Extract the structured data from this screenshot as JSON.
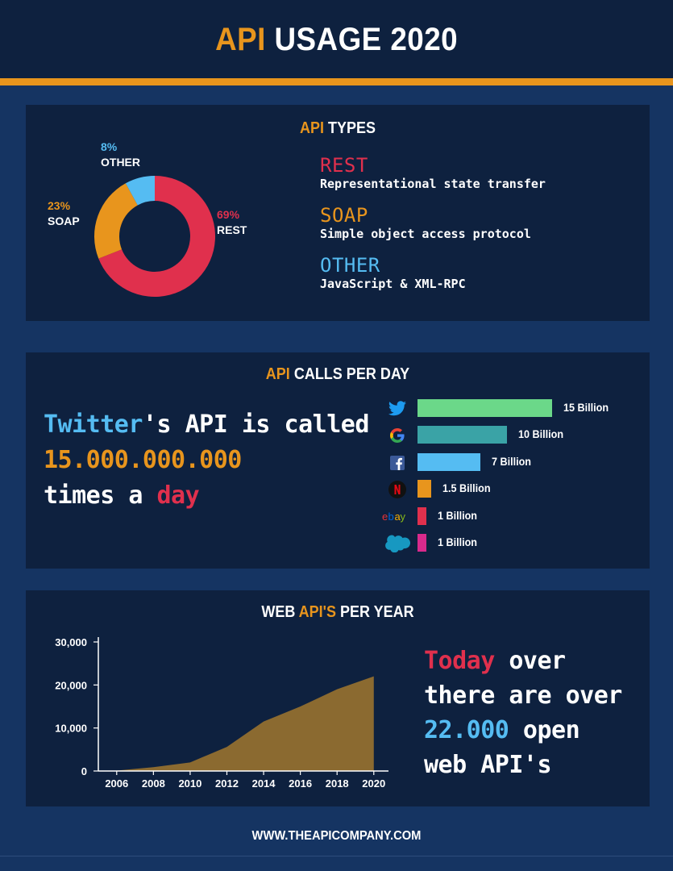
{
  "header": {
    "title_accent": "API",
    "title_rest": "USAGE 2020"
  },
  "colors": {
    "accent": "#e8951d",
    "rest": "#e0304d",
    "soap": "#e8951d",
    "other": "#55bcf2",
    "background": "#153462",
    "panel": "#0e213f"
  },
  "types": {
    "title_accent": "API",
    "title_rest": "TYPES",
    "items": [
      {
        "name": "REST",
        "desc": "Representational state transfer"
      },
      {
        "name": "SOAP",
        "desc": "Simple object access protocol"
      },
      {
        "name": "OTHER",
        "desc": "JavaScript & XML-RPC"
      }
    ]
  },
  "calls": {
    "title_accent": "API",
    "title_rest": "CALLS PER DAY",
    "headline": {
      "line1_highlight": "Twitter",
      "line1_rest": "'s API is called",
      "line2": "15.000.000.000",
      "line3_a": "times a ",
      "line3_highlight": "day"
    }
  },
  "year": {
    "title_a": "WEB ",
    "title_accent": "API'S",
    "title_b": " PER YEAR",
    "side": {
      "l1_highlight": "Today",
      "l1_rest": " over",
      "l2": "there are over",
      "l3_highlight": "22.000",
      "l3_rest": " open",
      "l4": "web API's"
    }
  },
  "footer": {
    "url": "WWW.THEAPICOMPANY.COM"
  },
  "chart_data": [
    {
      "type": "pie",
      "donut": true,
      "categories": [
        "REST",
        "SOAP",
        "OTHER"
      ],
      "values": [
        69,
        23,
        8
      ],
      "labels": [
        "69%",
        "23%",
        "8%"
      ],
      "colors": [
        "#e0304d",
        "#e8951d",
        "#55bcf2"
      ]
    },
    {
      "type": "bar",
      "orientation": "horizontal",
      "categories": [
        "twitter-icon",
        "google-icon",
        "facebook-icon",
        "netflix-icon",
        "ebay-icon",
        "salesforce-icon"
      ],
      "values": [
        15,
        10,
        7,
        1.5,
        1,
        1
      ],
      "labels": [
        "15 Billion",
        "10 Billion",
        "7 Billion",
        "1.5 Billion",
        "1 Billion",
        "1 Billion"
      ],
      "colors": [
        "#6bd889",
        "#3aa3a6",
        "#55bcf2",
        "#e8951d",
        "#e0304d",
        "#d92a8c"
      ],
      "unit": "Billion"
    },
    {
      "type": "area",
      "x": [
        2005,
        2006,
        2008,
        2010,
        2012,
        2014,
        2016,
        2018,
        2020
      ],
      "values": [
        0,
        100,
        900,
        2000,
        5600,
        11500,
        15000,
        19000,
        22000
      ],
      "xticks": [
        "2006",
        "2008",
        "2010",
        "2012",
        "2014",
        "2016",
        "2018",
        "2020"
      ],
      "yticks": [
        "0",
        "10,000",
        "20,000",
        "30,000"
      ],
      "ylim": [
        0,
        30000
      ],
      "color": "#8b6a30",
      "grid": false
    }
  ]
}
